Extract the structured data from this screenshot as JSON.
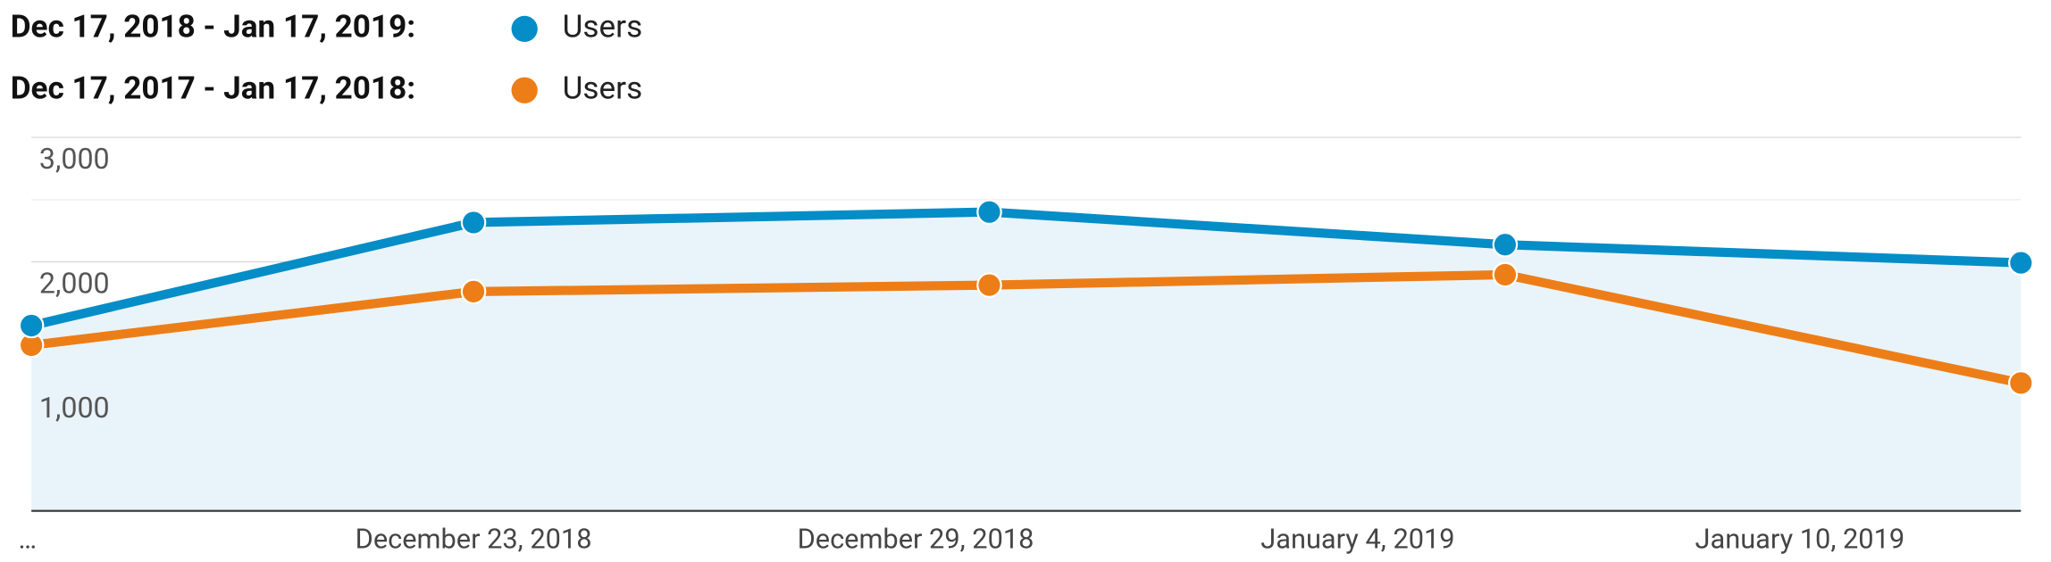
{
  "chart_data": {
    "type": "line",
    "x": [
      "2018-12-17",
      "2018-12-23",
      "2018-12-30",
      "2019-01-06",
      "2019-01-13"
    ],
    "series": [
      {
        "period": "Dec 17, 2018 - Jan 17, 2019:",
        "name": "Users",
        "color": "#058dc7",
        "values": [
          1488,
          2316,
          2400,
          2138,
          1992
        ],
        "area": true
      },
      {
        "period": "Dec 17, 2017 - Jan 17, 2018:",
        "name": "Users",
        "color": "#ed7e17",
        "values": [
          1331,
          1761,
          1813,
          1897,
          1027
        ]
      }
    ],
    "xlim": [
      "2018-12-17",
      "2019-01-13"
    ],
    "xticks": [
      {
        "value": "2018-12-17",
        "label": "…"
      },
      {
        "value": "2018-12-23",
        "label": "December 23, 2018"
      },
      {
        "value": "2018-12-29",
        "label": "December 29, 2018"
      },
      {
        "value": "2019-01-04",
        "label": "January 4, 2019"
      },
      {
        "value": "2019-01-10",
        "label": "January 10, 2019"
      }
    ],
    "ylim": [
      0,
      3000
    ],
    "yticks": [
      {
        "value": 1000,
        "label": "1,000"
      },
      {
        "value": 2000,
        "label": "2,000"
      },
      {
        "value": 3000,
        "label": "3,000"
      }
    ],
    "minor_grid": [
      500,
      1500,
      2500
    ],
    "grid": true
  }
}
